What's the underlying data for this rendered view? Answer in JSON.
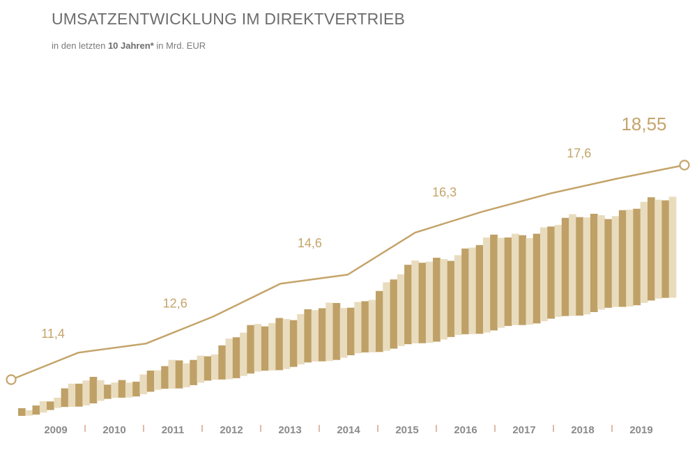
{
  "header": {
    "title": "UMSATZENTWICKLUNG IM DIREKTVERTRIEB",
    "subtitle_pre": "in den letzten ",
    "subtitle_bold": "10 Jahren*",
    "subtitle_post": " in Mrd. EUR"
  },
  "colors": {
    "gold": "#bfa066",
    "gold_light": "#e9dcbe",
    "line": "#c4a46a",
    "axis_text": "#8a8a8a",
    "tick": "#d9a08a"
  },
  "chart_data": {
    "type": "line",
    "title": "UMSATZENTWICKLUNG IM DIREKTVERTRIEB",
    "xlabel": "",
    "ylabel": "",
    "categories": [
      "2009",
      "2010",
      "2011",
      "2012",
      "2013",
      "2014",
      "2015",
      "2016",
      "2017",
      "2018",
      "2019"
    ],
    "series": [
      {
        "values": [
          11.4,
          12.3,
          12.6,
          13.5,
          14.6,
          14.9,
          16.3,
          17.0,
          17.6,
          18.1,
          18.55
        ]
      }
    ],
    "point_labels": [
      {
        "index": 0,
        "text": "11,4"
      },
      {
        "index": 2,
        "text": "12,6"
      },
      {
        "index": 4,
        "text": "14,6"
      },
      {
        "index": 6,
        "text": "16,3"
      },
      {
        "index": 8,
        "text": "17,6"
      },
      {
        "index": 10,
        "text": "18,55"
      }
    ],
    "decorative_bars": "background stacked bar pattern, no values"
  }
}
